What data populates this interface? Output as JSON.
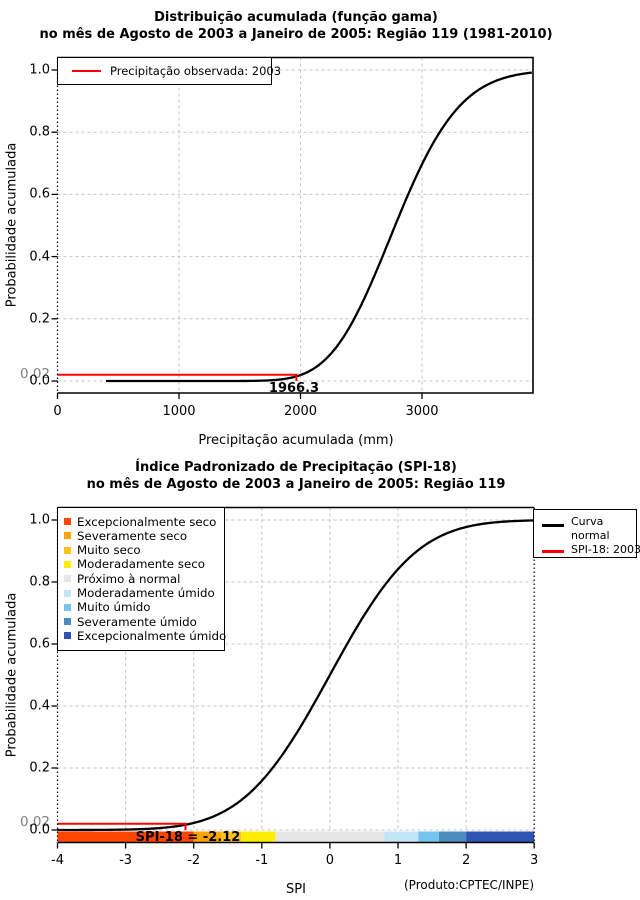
{
  "figure": {
    "charts": [
      {
        "title": "Distribuição acumulada (função gama)",
        "subtitle": "no mês de Agosto de 2003 a Janeiro de 2005: Região 119 (1981-2010)",
        "xlabel": "Precipitação acumulada (mm)",
        "ylabel": "Probabilidade acumulada",
        "x_ticks": {
          "values": [
            0,
            1000,
            2000,
            3000
          ],
          "labels": [
            "0",
            "1000",
            "2000",
            "3000"
          ]
        },
        "y_ticks": {
          "values": [
            0,
            0.2,
            0.4,
            0.6,
            0.8,
            1
          ],
          "labels": [
            "0.0",
            "0.2",
            "0.4",
            "0.6",
            "0.8",
            "1.0"
          ]
        },
        "legend": {
          "label": "Precipitação observada: 2003",
          "color": "#FF0000"
        },
        "marker": {
          "x": 1966.3,
          "x_label": "1966.3",
          "p": 0.02,
          "p_label": "0.02"
        }
      },
      {
        "title": "Índice Padronizado de Precipitação (SPI-18)",
        "subtitle": "no mês de Agosto de 2003 a Janeiro de 2005: Região 119",
        "xlabel": "SPI",
        "ylabel": "Probabilidade acumulada",
        "credit": "(Produto:CPTEC/INPE)",
        "x_ticks": {
          "values": [
            -4,
            -3,
            -2,
            -1,
            0,
            1,
            2,
            3
          ],
          "labels": [
            "-4",
            "-3",
            "-2",
            "-1",
            "0",
            "1",
            "2",
            "3"
          ]
        },
        "y_ticks": {
          "values": [
            0,
            0.2,
            0.4,
            0.6,
            0.8,
            1
          ],
          "labels": [
            "0.0",
            "0.2",
            "0.4",
            "0.6",
            "0.8",
            "1.0"
          ]
        },
        "categories": [
          {
            "label": "Excepcionalmente seco",
            "color": "#FF4500",
            "range": [
              -4,
              -2
            ]
          },
          {
            "label": "Severamente seco",
            "color": "#FFA500",
            "range": [
              -2,
              -1.6
            ]
          },
          {
            "label": "Muito seco",
            "color": "#FFC21E",
            "range": [
              -1.6,
              -1.3
            ]
          },
          {
            "label": "Moderadamente seco",
            "color": "#FFEE00",
            "range": [
              -1.3,
              -0.8
            ]
          },
          {
            "label": "Próximo à normal",
            "color": "#E6E6E6",
            "range": [
              -0.8,
              0.8
            ]
          },
          {
            "label": "Moderadamente úmido",
            "color": "#C2E6F8",
            "range": [
              0.8,
              1.3
            ]
          },
          {
            "label": "Muito úmido",
            "color": "#74C5EE",
            "range": [
              1.3,
              1.6
            ]
          },
          {
            "label": "Severamente úmido",
            "color": "#4A8CBE",
            "range": [
              1.6,
              2
            ]
          },
          {
            "label": "Excepcionalmente úmido",
            "color": "#2E55B4",
            "range": [
              2,
              3
            ]
          }
        ],
        "legend": [
          {
            "lines": [
              "Curva",
              "normal"
            ],
            "color": "#000000"
          },
          {
            "lines": [
              "SPI-18: 2003"
            ],
            "color": "#FF0000"
          }
        ],
        "marker": {
          "x": -2.12,
          "label": "SPI-18 = -2.12",
          "p": 0.02,
          "p_label": "0.02"
        }
      }
    ]
  },
  "chart_data": [
    {
      "type": "line",
      "title": "Distribuição acumulada (função gama)",
      "subtitle": "no mês de Agosto de 2003 a Janeiro de 2005: Região 119 (1981-2010)",
      "xlabel": "Precipitação acumulada (mm)",
      "ylabel": "Probabilidade acumulada",
      "xlim": [
        0,
        3914
      ],
      "ylim": [
        0,
        1
      ],
      "x_ticks": [
        0,
        1000,
        2000,
        3000
      ],
      "y_ticks": [
        0,
        0.2,
        0.4,
        0.6,
        0.8,
        1
      ],
      "grid": true,
      "legend_position": "top-left",
      "series": [
        {
          "name": "Distribuição acumulada (função gama)",
          "type": "line",
          "color": "#000000",
          "model": "gamma_cdf",
          "shape": 44.4,
          "mean": 2800,
          "x_start": 400,
          "x_end": 3914,
          "points": [
            [
              1500,
              0.001
            ],
            [
              1966.3,
              0.02
            ],
            [
              2200,
              0.07
            ],
            [
              2458,
              0.2
            ],
            [
              2678,
              0.4
            ],
            [
              2800,
              0.5
            ],
            [
              2898,
              0.6
            ],
            [
              3169,
              0.8
            ],
            [
              3500,
              0.935
            ],
            [
              3900,
              0.99
            ]
          ]
        },
        {
          "name": "Precipitação observada: 2003",
          "type": "reference-line",
          "color": "#FF0000",
          "x": 1966.3,
          "probability": 0.02
        }
      ],
      "annotations": [
        "1966.3",
        "0.02"
      ]
    },
    {
      "type": "line",
      "title": "Índice Padronizado de Precipitação (SPI-18)",
      "subtitle": "no mês de Agosto de 2003 a Janeiro de 2005: Região 119",
      "xlabel": "SPI",
      "ylabel": "Probabilidade acumulada",
      "xlim": [
        -4,
        3
      ],
      "ylim": [
        0,
        1
      ],
      "x_ticks": [
        -4,
        -3,
        -2,
        -1,
        0,
        1,
        2,
        3
      ],
      "y_ticks": [
        0,
        0.2,
        0.4,
        0.6,
        0.8,
        1
      ],
      "grid": true,
      "series": [
        {
          "name": "Curva normal",
          "type": "line",
          "color": "#000000",
          "model": "normal_cdf",
          "mean": 0,
          "sd": 1,
          "x_start": -4,
          "x_end": 3,
          "points": [
            [
              -2.12,
              0.017
            ],
            [
              -1,
              0.159
            ],
            [
              0,
              0.5
            ],
            [
              1,
              0.841
            ],
            [
              2,
              0.977
            ],
            [
              3,
              0.999
            ]
          ]
        },
        {
          "name": "SPI-18: 2003",
          "type": "reference-line",
          "color": "#FF0000",
          "x": -2.12,
          "probability": 0.02
        }
      ],
      "category_bar": [
        {
          "label": "Excepcionalmente seco",
          "color": "#FF4500",
          "from": -4,
          "to": -2
        },
        {
          "label": "Severamente seco",
          "color": "#FFA500",
          "from": -2,
          "to": -1.6
        },
        {
          "label": "Muito seco",
          "color": "#FFC21E",
          "from": -1.6,
          "to": -1.3
        },
        {
          "label": "Moderadamente seco",
          "color": "#FFEE00",
          "from": -1.3,
          "to": -0.8
        },
        {
          "label": "Próximo à normal",
          "color": "#E6E6E6",
          "from": -0.8,
          "to": 0.8
        },
        {
          "label": "Moderadamente úmido",
          "color": "#C2E6F8",
          "from": 0.8,
          "to": 1.3
        },
        {
          "label": "Muito úmido",
          "color": "#74C5EE",
          "from": 1.3,
          "to": 1.6
        },
        {
          "label": "Severamente úmido",
          "color": "#4A8CBE",
          "from": 1.6,
          "to": 2
        },
        {
          "label": "Excepcionalmente úmido",
          "color": "#2E55B4",
          "from": 2,
          "to": 3
        }
      ],
      "annotations": [
        "SPI-18 = -2.12",
        "0.02",
        "(Produto:CPTEC/INPE)"
      ]
    }
  ]
}
